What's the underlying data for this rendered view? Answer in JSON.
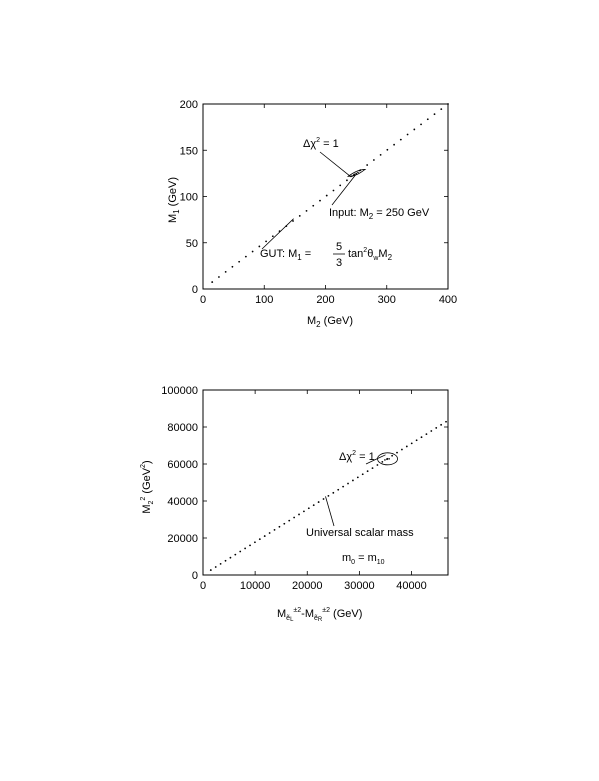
{
  "chart_data": [
    {
      "type": "scatter",
      "title": "",
      "xlabel": {
        "main": "M",
        "sub": "2",
        "rest": " (GeV)"
      },
      "ylabel": {
        "main": "M",
        "sub": "1",
        "rest": " (GeV)"
      },
      "xlim": [
        0,
        400
      ],
      "ylim": [
        0,
        200
      ],
      "xticks": [
        0,
        100,
        200,
        300,
        400
      ],
      "yticks": [
        0,
        50,
        100,
        150,
        200
      ],
      "series": [
        {
          "line": {
            "x_start": 15,
            "x_end": 400,
            "slope": 0.5,
            "step": 10,
            "point_step": 11
          },
          "cluster": {
            "x": [
              243,
              247,
              250,
              253,
              256
            ],
            "y": [
              122,
              124,
              125,
              126,
              128
            ]
          }
        }
      ],
      "annotations": {
        "chi2": {
          "delta": "Δχ",
          "sup": "2",
          "rest": " = 1",
          "point": [
            242,
            121
          ]
        },
        "input": {
          "pre": "Input: M",
          "sub": "2",
          "rest": " = 250 GeV",
          "point": [
            251,
            125
          ]
        },
        "gut": {
          "pre": "GUT: M",
          "sub1": "1",
          "eq": " = ",
          "num": "5",
          "den": "3",
          "post": " tan",
          "sup": "2",
          "theta": "θ",
          "tsub": "w",
          "m": "M",
          "msub": "2",
          "point": [
            148,
            76
          ]
        }
      }
    },
    {
      "type": "scatter",
      "title": "",
      "xlabel": {
        "main": "M",
        "sub1": "ẽ",
        "sub2": "L",
        "sup": "±2",
        "dash": "-M",
        "sub3": "ẽ",
        "sub4": "R",
        "sup2": "±2",
        "rest": "  (GeV)"
      },
      "ylabel": {
        "main": "M",
        "sub": "2",
        "sup": "2",
        "rest": " (GeV",
        "sup2": "2",
        "close": ")"
      },
      "xlim": [
        0,
        47000
      ],
      "ylim": [
        0,
        100000
      ],
      "xticks": [
        0,
        10000,
        20000,
        30000,
        40000
      ],
      "yticks": [
        0,
        20000,
        40000,
        60000,
        80000,
        100000
      ],
      "series": [
        {
          "line": {
            "x_start": 1500,
            "x_end": 46800,
            "slope": 1.777,
            "step": 940
          },
          "cluster": {
            "x": [
              34900,
              35300,
              35700
            ],
            "y": [
              62200,
              62500,
              62800
            ]
          }
        }
      ],
      "annotations": {
        "chi2": {
          "delta": "Δχ",
          "sup": "2",
          "rest": " = 1",
          "ellipse": [
            35400,
            62800
          ]
        },
        "universal": {
          "text": "Universal scalar mass",
          "point": [
            23500,
            42500
          ]
        },
        "m0": {
          "pre": "m",
          "sub1": "0",
          "eq": " = m",
          "sub2": "10"
        }
      }
    }
  ]
}
